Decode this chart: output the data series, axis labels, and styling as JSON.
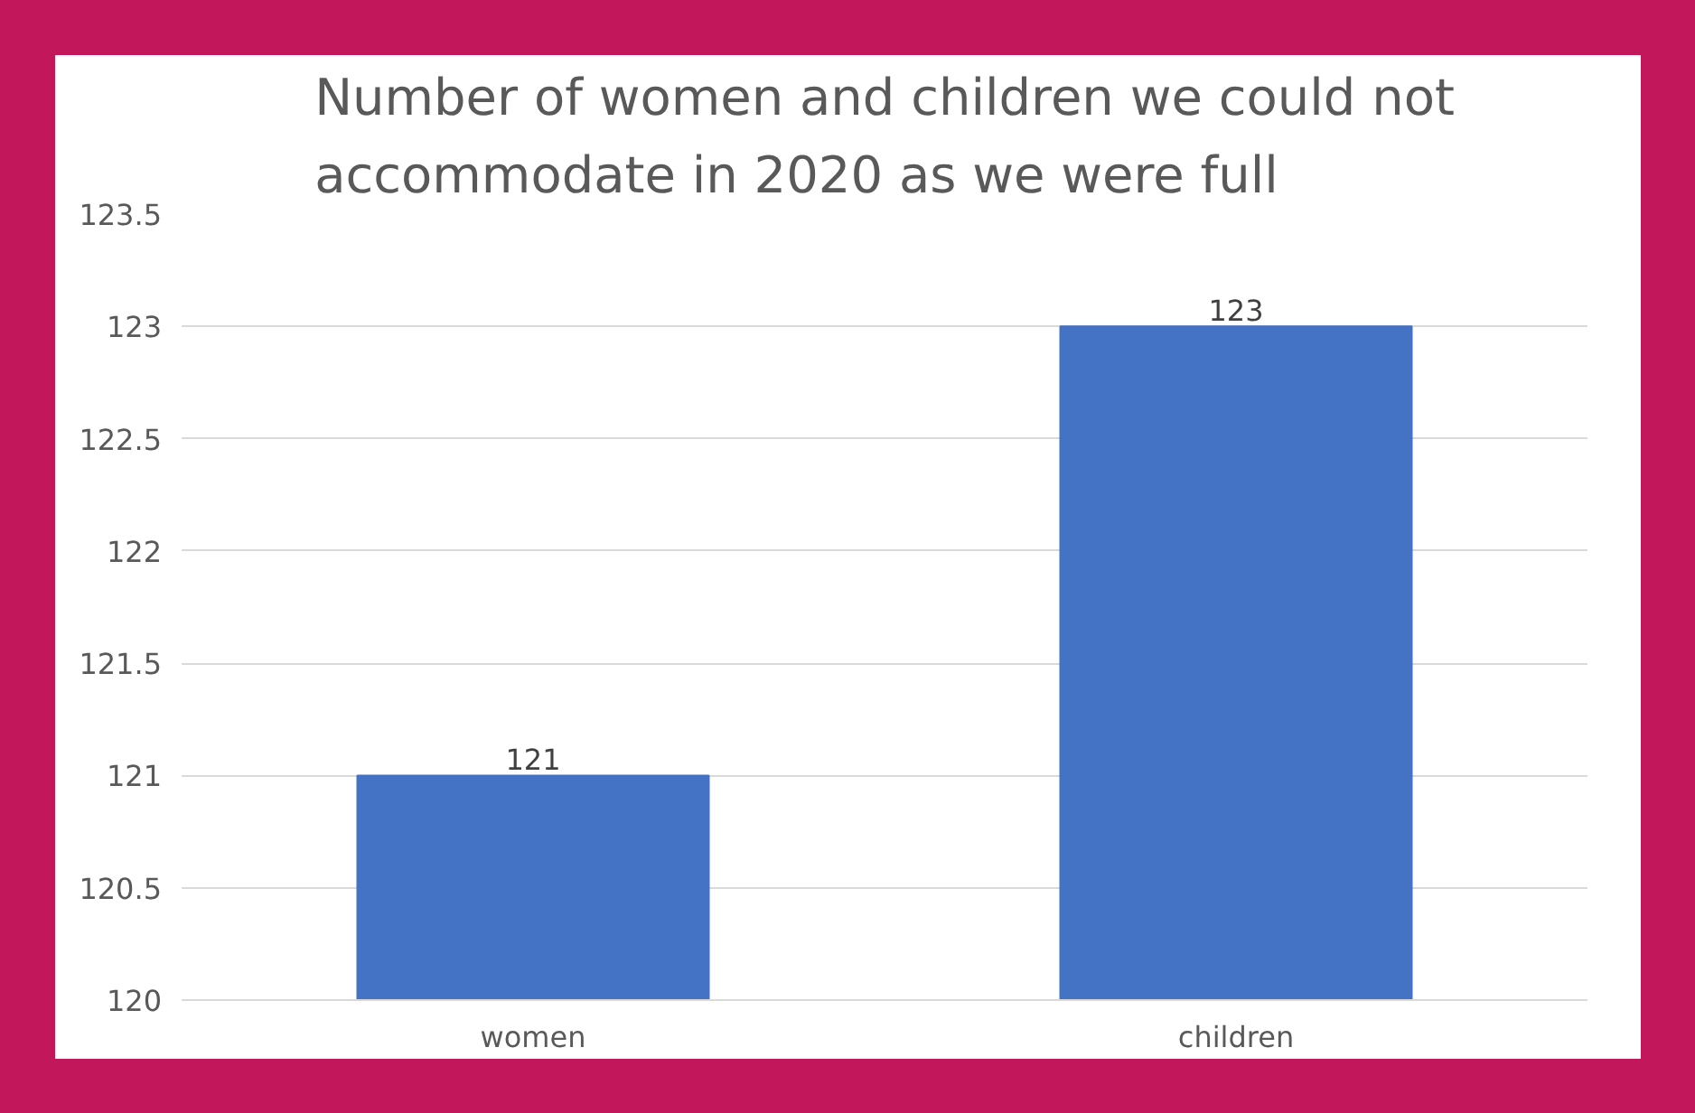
{
  "chart_data": {
    "type": "bar",
    "title": "Number of women and children we could not accommodate in 2020 as we were full",
    "categories": [
      "women",
      "children"
    ],
    "values": [
      121,
      123
    ],
    "color": "#4472c4",
    "ylim": [
      120,
      123.5
    ],
    "yticks": [
      120,
      120.5,
      121,
      121.5,
      122,
      122.5,
      123,
      123.5
    ],
    "grid": "y",
    "data_labels": true
  }
}
